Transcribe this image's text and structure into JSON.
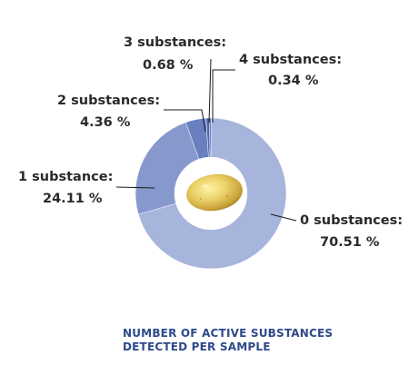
{
  "chart_data": {
    "type": "pie",
    "style": "donut",
    "title": "",
    "caption_lines": [
      "NUMBER OF ACTIVE SUBSTANCES",
      "DETECTED PER SAMPLE"
    ],
    "unit": "%",
    "slices": [
      {
        "category": "0 substances:",
        "value": 70.51,
        "value_label": "70.51 %",
        "color": "#a7b4dc"
      },
      {
        "category": "1 substance:",
        "value": 24.11,
        "value_label": "24.11 %",
        "color": "#8798cd"
      },
      {
        "category": "2 substances:",
        "value": 4.36,
        "value_label": "4.36 %",
        "color": "#6a7fc0"
      },
      {
        "category": "3 substances:",
        "value": 0.68,
        "value_label": "0.68 %",
        "color": "#4e66b2"
      },
      {
        "category": "4 substances:",
        "value": 0.34,
        "value_label": "0.34 %",
        "color": "#3a54a6"
      }
    ],
    "center_image": "potato"
  }
}
